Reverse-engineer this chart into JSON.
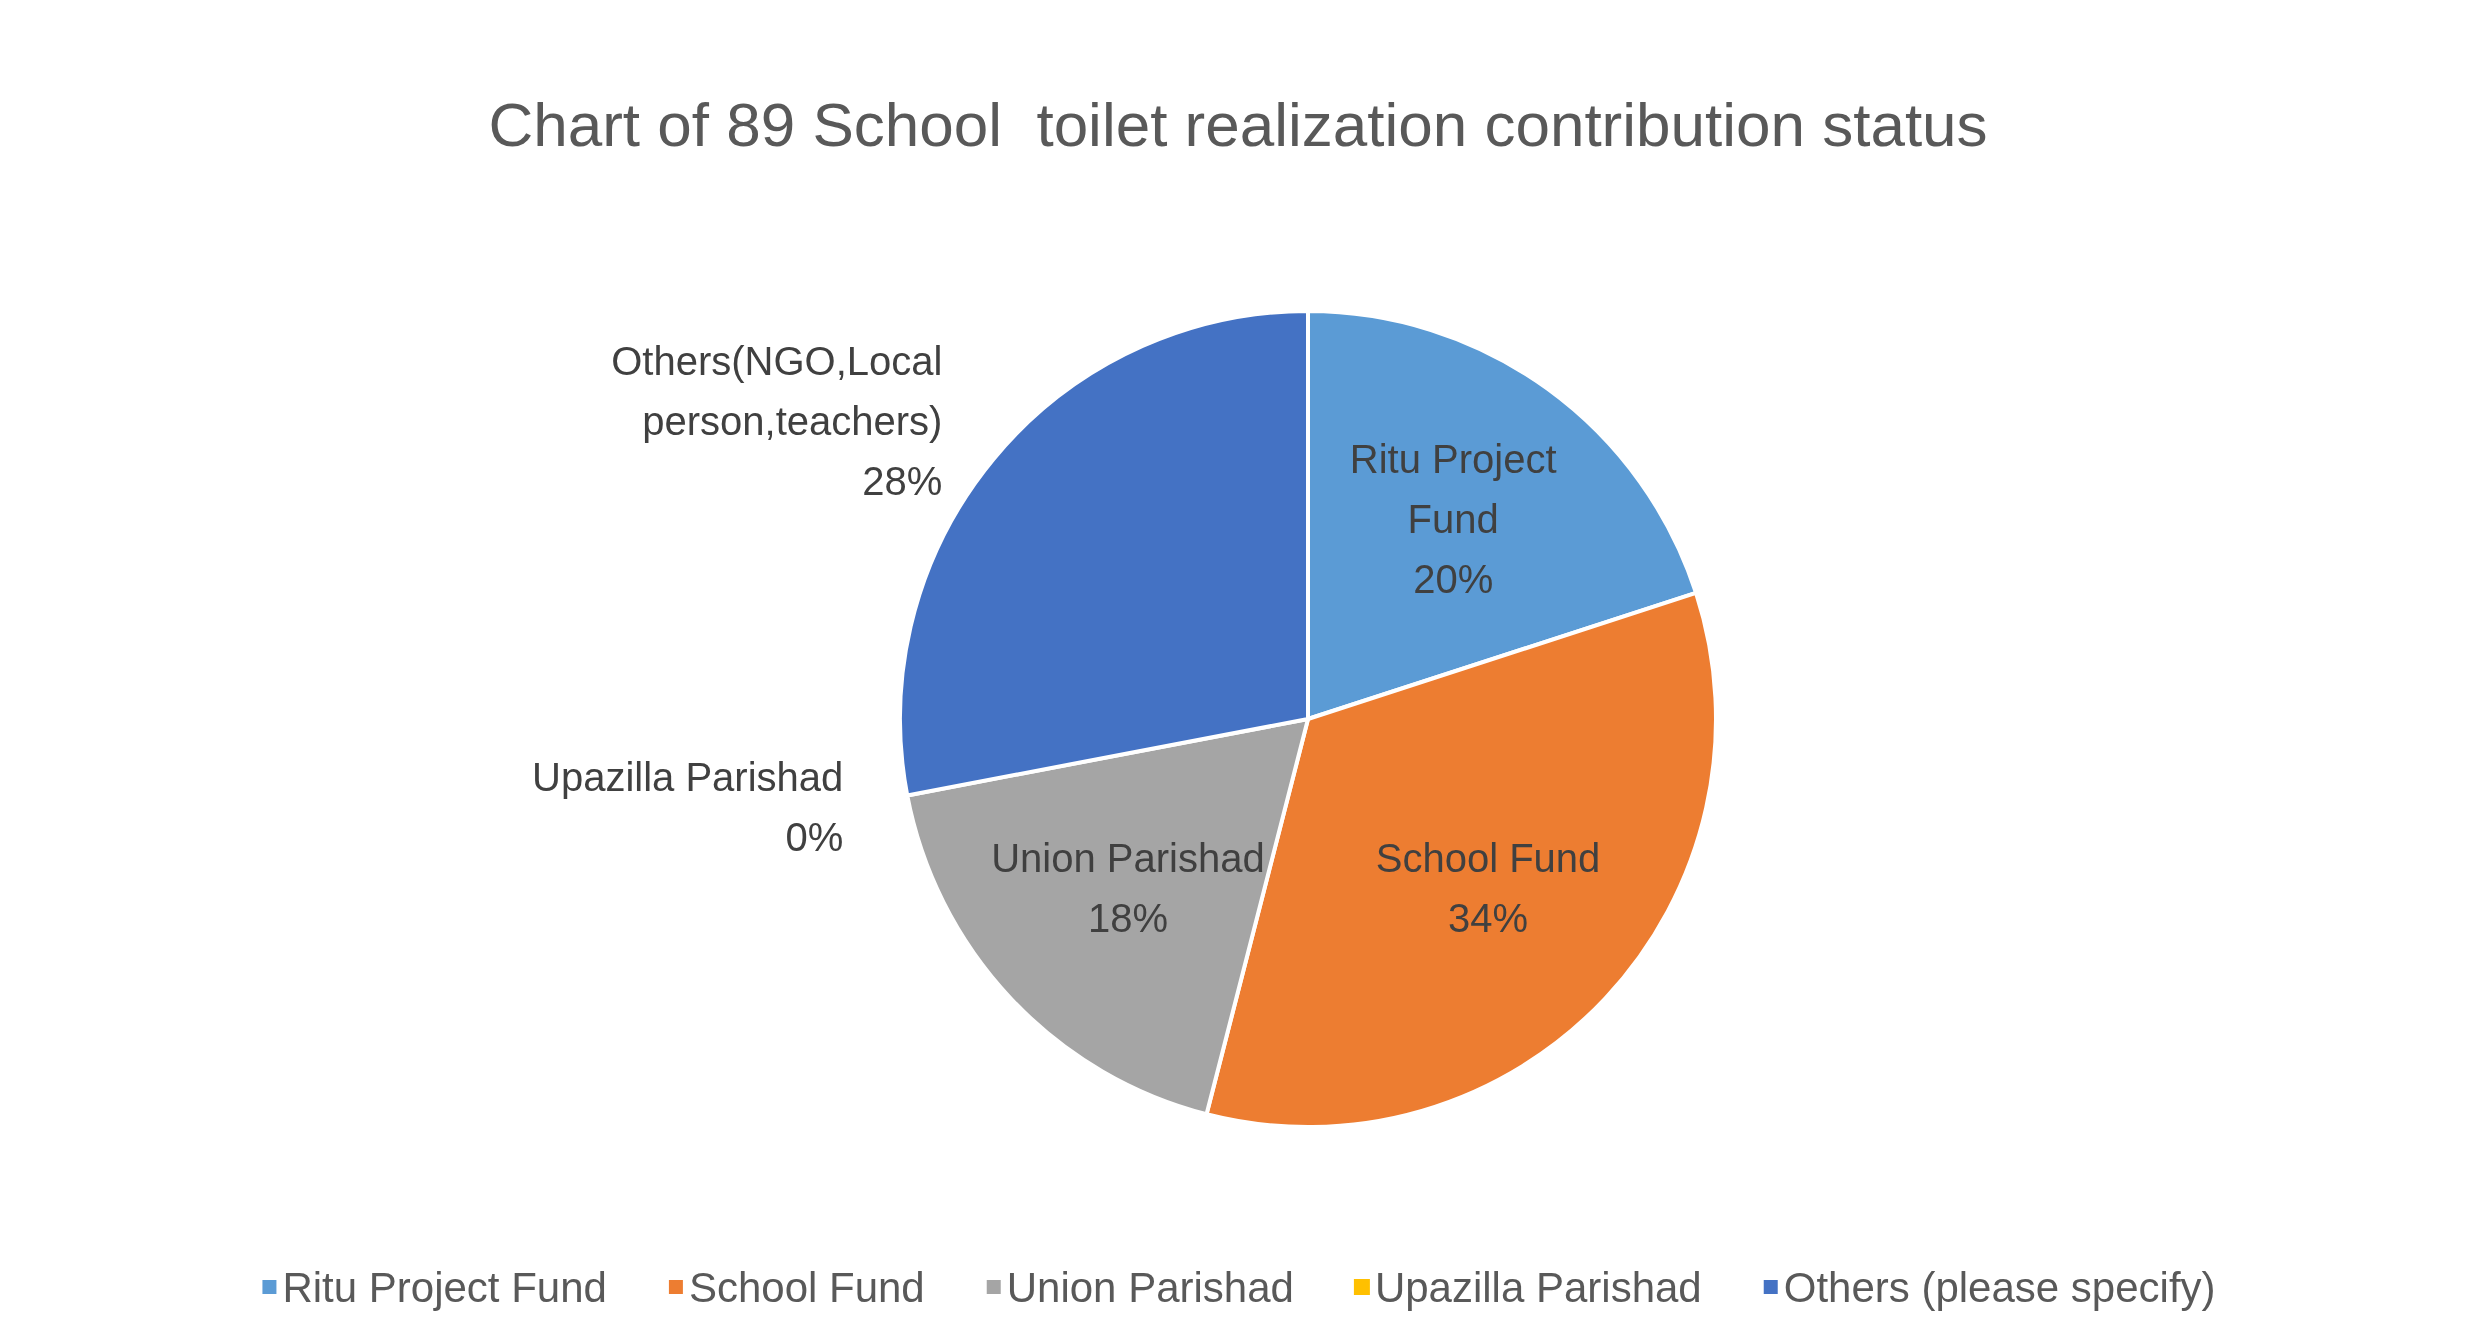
{
  "chart_data": {
    "type": "pie",
    "title": "Chart of 89 School  toilet realization contribution status",
    "categories": [
      "Ritu Project Fund",
      "School Fund",
      "Union Parishad",
      "Upazilla Parishad",
      "Others (please specify)"
    ],
    "values": [
      20,
      34,
      18,
      0,
      28
    ],
    "colors": [
      "#5b9bd5",
      "#ed7d31",
      "#a5a5a5",
      "#ffc000",
      "#4472c4"
    ],
    "value_labels": [
      "Ritu Project\nFund\n20%",
      "School Fund\n34%",
      "Union Parishad\n18%",
      "Upazilla Parishad\n0%",
      "Others(NGO,Local\nperson,teachers)\n28%"
    ],
    "legend": "bottom"
  }
}
